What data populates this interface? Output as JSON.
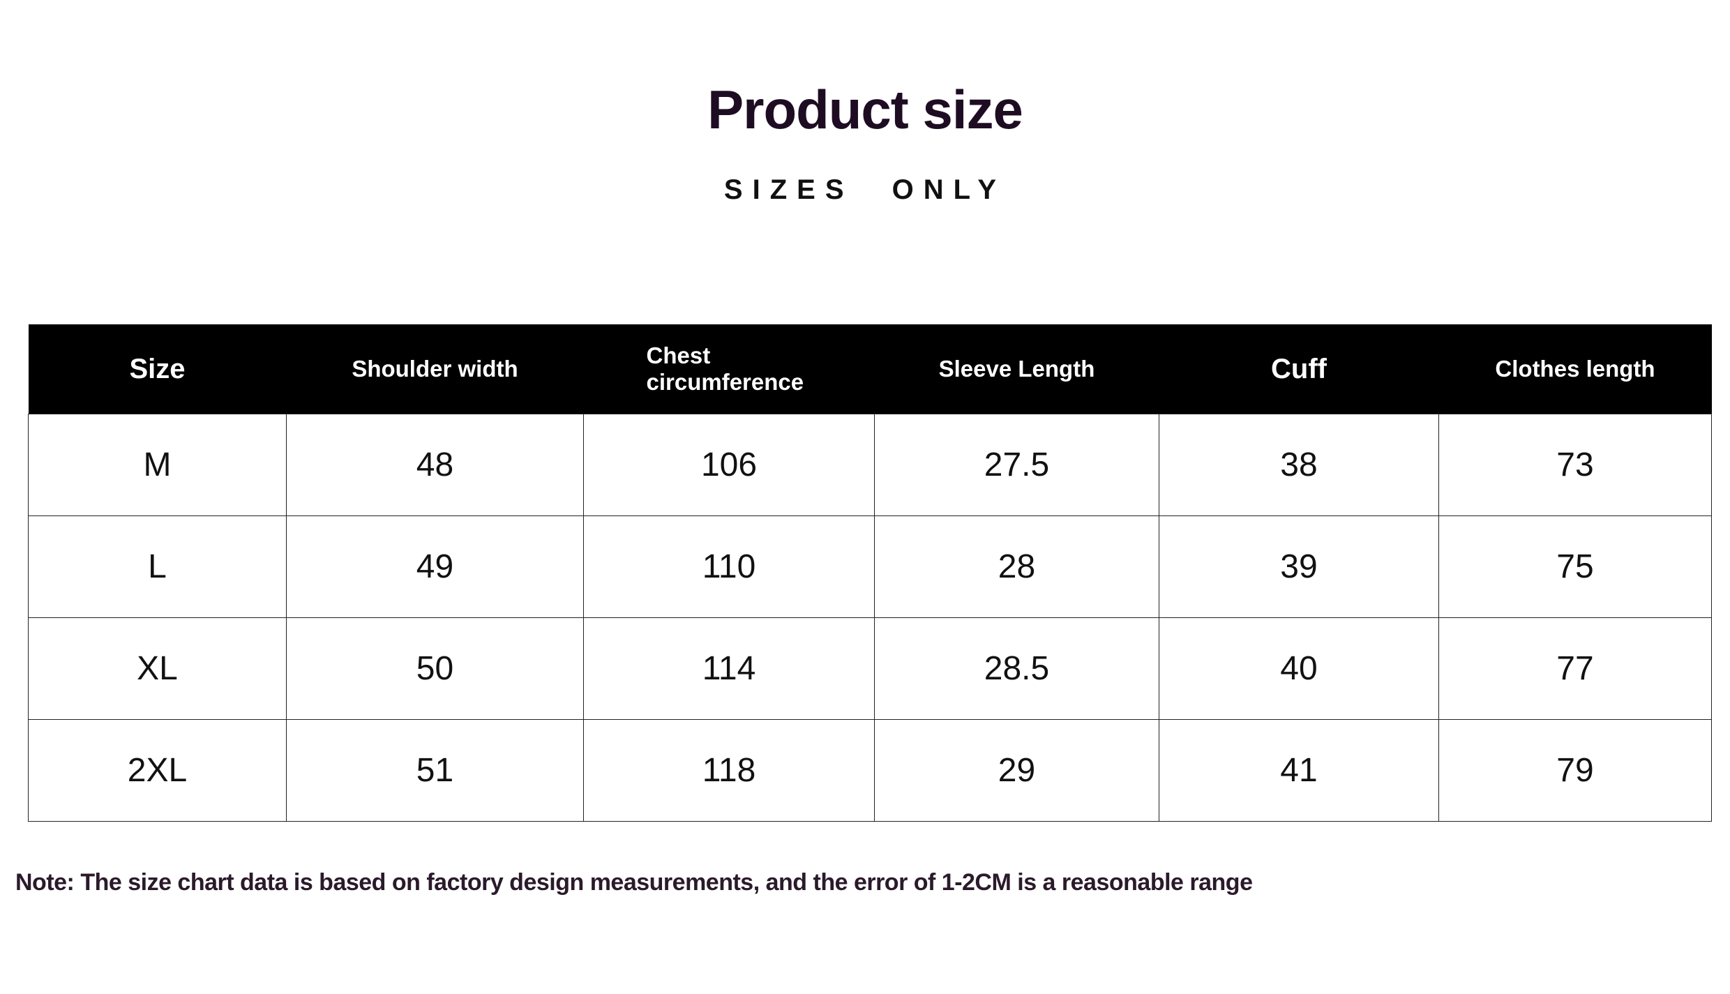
{
  "title": "Product size",
  "subtitle": "SIZES ONLY",
  "table": {
    "headers": [
      "Size",
      "Shoulder width",
      "Chest circumference",
      "Sleeve Length",
      "Cuff",
      "Clothes length"
    ],
    "rows": [
      [
        "M",
        "48",
        "106",
        "27.5",
        "38",
        "73"
      ],
      [
        "L",
        "49",
        "110",
        "28",
        "39",
        "75"
      ],
      [
        "XL",
        "50",
        "114",
        "28.5",
        "40",
        "77"
      ],
      [
        "2XL",
        "51",
        "118",
        "29",
        "41",
        "79"
      ]
    ]
  },
  "note": "Note: The size chart data is based on factory design measurements, and the error of 1-2CM is a reasonable range"
}
